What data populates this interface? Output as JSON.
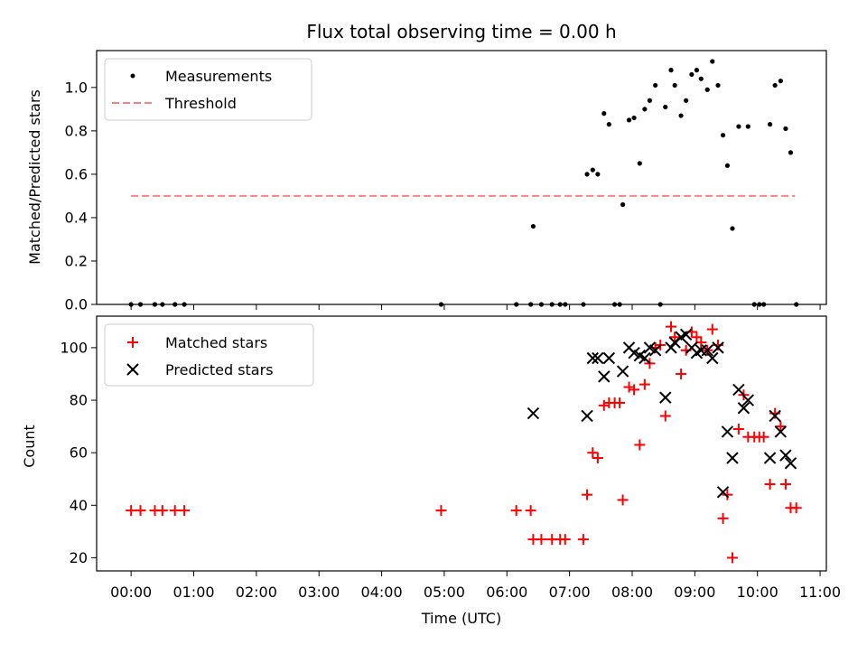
{
  "chart_data": [
    {
      "type": "scatter",
      "title": "Flux total observing time = 0.00 h",
      "ylabel": "Matched/Predicted stars",
      "xlabel": "",
      "xlim": [
        -0.55,
        11.1
      ],
      "ylim": [
        0,
        1.17
      ],
      "yticks": [
        0.0,
        0.2,
        0.4,
        0.6,
        0.8,
        1.0
      ],
      "ytick_labels": [
        "0.0",
        "0.2",
        "0.4",
        "0.6",
        "0.8",
        "1.0"
      ],
      "legend": {
        "position": "top-left",
        "entries": [
          "Measurements",
          "Threshold"
        ]
      },
      "series": [
        {
          "name": "Measurements",
          "marker": "dot",
          "color": "#000000",
          "points": [
            [
              0.0,
              0.0
            ],
            [
              0.15,
              0.0
            ],
            [
              0.38,
              0.0
            ],
            [
              0.5,
              0.0
            ],
            [
              0.7,
              0.0
            ],
            [
              0.85,
              0.0
            ],
            [
              4.95,
              0.0
            ],
            [
              6.15,
              0.0
            ],
            [
              6.38,
              0.0
            ],
            [
              6.42,
              0.36
            ],
            [
              6.55,
              0.0
            ],
            [
              6.72,
              0.0
            ],
            [
              6.85,
              0.0
            ],
            [
              6.93,
              0.0
            ],
            [
              7.22,
              0.0
            ],
            [
              7.28,
              0.6
            ],
            [
              7.37,
              0.62
            ],
            [
              7.45,
              0.6
            ],
            [
              7.55,
              0.88
            ],
            [
              7.63,
              0.83
            ],
            [
              7.72,
              0.0
            ],
            [
              7.8,
              0.0
            ],
            [
              7.85,
              0.46
            ],
            [
              7.95,
              0.85
            ],
            [
              8.03,
              0.86
            ],
            [
              8.12,
              0.65
            ],
            [
              8.2,
              0.9
            ],
            [
              8.28,
              0.94
            ],
            [
              8.37,
              1.01
            ],
            [
              8.45,
              0.0
            ],
            [
              8.53,
              0.91
            ],
            [
              8.62,
              1.08
            ],
            [
              8.68,
              1.01
            ],
            [
              8.78,
              0.87
            ],
            [
              8.86,
              0.94
            ],
            [
              8.95,
              1.06
            ],
            [
              9.03,
              1.08
            ],
            [
              9.1,
              1.04
            ],
            [
              9.2,
              0.99
            ],
            [
              9.28,
              1.12
            ],
            [
              9.37,
              1.01
            ],
            [
              9.45,
              0.78
            ],
            [
              9.52,
              0.64
            ],
            [
              9.6,
              0.35
            ],
            [
              9.7,
              0.82
            ],
            [
              9.85,
              0.82
            ],
            [
              9.95,
              0.0
            ],
            [
              10.03,
              0.0
            ],
            [
              10.1,
              0.0
            ],
            [
              10.2,
              0.83
            ],
            [
              10.28,
              1.01
            ],
            [
              10.37,
              1.03
            ],
            [
              10.45,
              0.81
            ],
            [
              10.53,
              0.7
            ],
            [
              10.62,
              0.0
            ]
          ]
        },
        {
          "name": "Threshold",
          "style": "dashed",
          "color": "#ff8080",
          "x": [
            0.0,
            10.6
          ],
          "y": [
            0.5,
            0.5
          ]
        }
      ]
    },
    {
      "type": "scatter",
      "title": "",
      "ylabel": "Count",
      "xlabel": "Time (UTC)",
      "xlim": [
        -0.55,
        11.1
      ],
      "ylim": [
        15,
        112
      ],
      "yticks": [
        20,
        40,
        60,
        80,
        100
      ],
      "ytick_labels": [
        "20",
        "40",
        "60",
        "80",
        "100"
      ],
      "xticks": [
        0,
        1,
        2,
        3,
        4,
        5,
        6,
        7,
        8,
        9,
        10,
        11
      ],
      "xtick_labels": [
        "00:00",
        "01:00",
        "02:00",
        "03:00",
        "04:00",
        "05:00",
        "06:00",
        "07:00",
        "08:00",
        "09:00",
        "10:00",
        "11:00"
      ],
      "legend": {
        "position": "top-left",
        "entries": [
          "Matched stars",
          "Predicted stars"
        ]
      },
      "series": [
        {
          "name": "Matched stars",
          "marker": "plus",
          "color": "#ff0000",
          "points": [
            [
              0.0,
              38
            ],
            [
              0.15,
              38
            ],
            [
              0.38,
              38
            ],
            [
              0.5,
              38
            ],
            [
              0.7,
              38
            ],
            [
              0.85,
              38
            ],
            [
              4.95,
              38
            ],
            [
              6.15,
              38
            ],
            [
              6.38,
              38
            ],
            [
              6.42,
              27
            ],
            [
              6.55,
              27
            ],
            [
              6.72,
              27
            ],
            [
              6.85,
              27
            ],
            [
              6.93,
              27
            ],
            [
              7.22,
              27
            ],
            [
              7.28,
              44
            ],
            [
              7.37,
              60
            ],
            [
              7.45,
              58
            ],
            [
              7.55,
              78
            ],
            [
              7.63,
              79
            ],
            [
              7.72,
              79
            ],
            [
              7.8,
              79
            ],
            [
              7.85,
              42
            ],
            [
              7.95,
              85
            ],
            [
              8.03,
              84
            ],
            [
              8.12,
              63
            ],
            [
              8.2,
              86
            ],
            [
              8.28,
              94
            ],
            [
              8.37,
              100
            ],
            [
              8.45,
              101
            ],
            [
              8.53,
              74
            ],
            [
              8.62,
              108
            ],
            [
              8.68,
              104
            ],
            [
              8.78,
              90
            ],
            [
              8.86,
              99
            ],
            [
              8.95,
              106
            ],
            [
              9.03,
              104
            ],
            [
              9.1,
              102
            ],
            [
              9.2,
              99
            ],
            [
              9.28,
              107
            ],
            [
              9.37,
              101
            ],
            [
              9.45,
              35
            ],
            [
              9.52,
              44
            ],
            [
              9.6,
              20
            ],
            [
              9.7,
              69
            ],
            [
              9.78,
              82
            ],
            [
              9.85,
              66
            ],
            [
              9.95,
              66
            ],
            [
              10.03,
              66
            ],
            [
              10.1,
              66
            ],
            [
              10.2,
              48
            ],
            [
              10.28,
              75
            ],
            [
              10.37,
              70
            ],
            [
              10.45,
              48
            ],
            [
              10.53,
              39
            ],
            [
              10.62,
              39
            ]
          ]
        },
        {
          "name": "Predicted stars",
          "marker": "x",
          "color": "#000000",
          "points": [
            [
              6.42,
              75
            ],
            [
              7.28,
              74
            ],
            [
              7.37,
              96
            ],
            [
              7.45,
              96
            ],
            [
              7.55,
              89
            ],
            [
              7.63,
              96
            ],
            [
              7.85,
              91
            ],
            [
              7.95,
              100
            ],
            [
              8.03,
              98
            ],
            [
              8.12,
              97
            ],
            [
              8.2,
              96
            ],
            [
              8.28,
              100
            ],
            [
              8.37,
              99
            ],
            [
              8.53,
              81
            ],
            [
              8.62,
              100
            ],
            [
              8.68,
              102
            ],
            [
              8.78,
              104
            ],
            [
              8.86,
              105
            ],
            [
              8.95,
              100
            ],
            [
              9.03,
              98
            ],
            [
              9.1,
              99
            ],
            [
              9.2,
              99
            ],
            [
              9.28,
              96
            ],
            [
              9.37,
              100
            ],
            [
              9.45,
              45
            ],
            [
              9.52,
              68
            ],
            [
              9.6,
              58
            ],
            [
              9.7,
              84
            ],
            [
              9.78,
              77
            ],
            [
              9.85,
              80
            ],
            [
              10.2,
              58
            ],
            [
              10.28,
              74
            ],
            [
              10.37,
              68
            ],
            [
              10.45,
              59
            ],
            [
              10.53,
              56
            ]
          ]
        }
      ]
    }
  ]
}
